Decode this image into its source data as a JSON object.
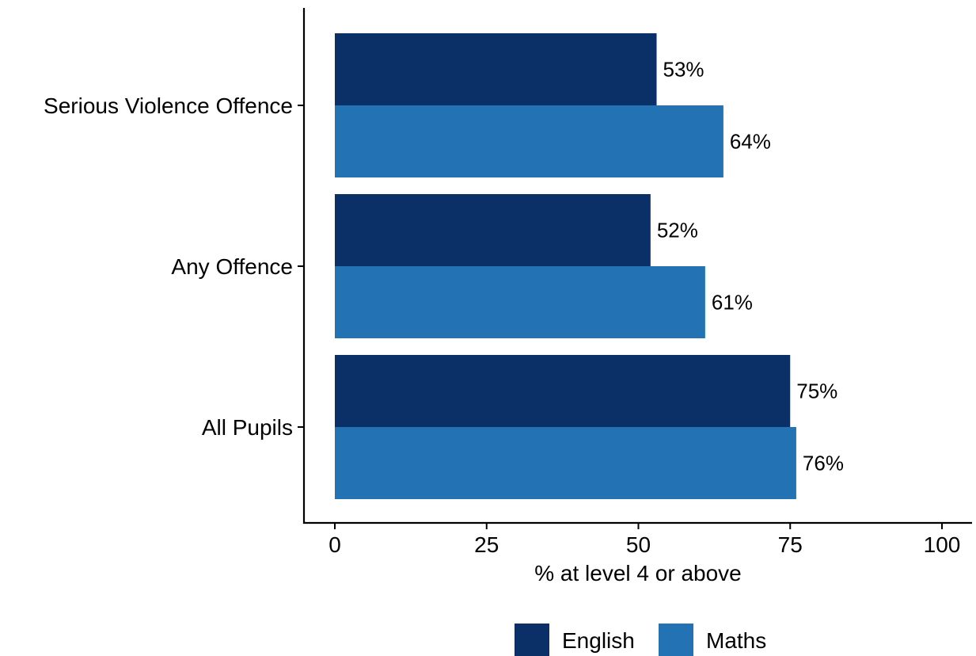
{
  "chart_data": {
    "type": "bar",
    "orientation": "horizontal",
    "categories": [
      "Serious Violence Offence",
      "Any Offence",
      "All Pupils"
    ],
    "series": [
      {
        "name": "English",
        "values": [
          53,
          52,
          75
        ],
        "labels": [
          "53%",
          "52%",
          "75%"
        ],
        "color": "#0B3068"
      },
      {
        "name": "Maths",
        "values": [
          64,
          61,
          76
        ],
        "labels": [
          "64%",
          "61%",
          "76%"
        ],
        "color": "#2272B4"
      }
    ],
    "xlabel": "% at level 4 or above",
    "ylabel": "",
    "xlim": [
      0,
      100
    ],
    "xticks": [
      0,
      25,
      50,
      75,
      100
    ],
    "xtick_labels": [
      "0",
      "25",
      "50",
      "75",
      "100"
    ],
    "grid": false,
    "legend_position": "bottom"
  }
}
